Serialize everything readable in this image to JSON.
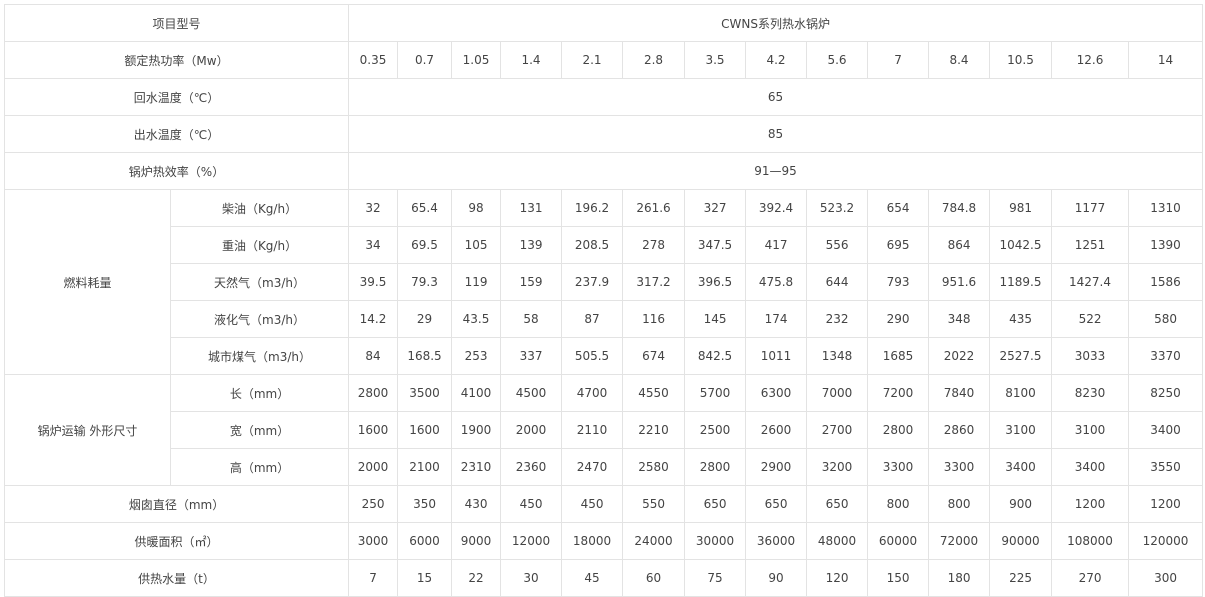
{
  "table": {
    "header": {
      "label": "项目型号",
      "title": "CWNS系列热水锅炉"
    },
    "rows": [
      {
        "label": "额定热功率（Mw）",
        "values": [
          0.35,
          0.7,
          1.05,
          1.4,
          2.1,
          2.8,
          3.5,
          4.2,
          5.6,
          7,
          8.4,
          10.5,
          12.6,
          14
        ]
      },
      {
        "label": "回水温度（℃）",
        "value": 65
      },
      {
        "label": "出水温度（℃）",
        "value": 85
      },
      {
        "label": "锅炉热效率（%）",
        "value": "91—95"
      },
      {
        "group": "燃料耗量",
        "items": [
          {
            "label": "柴油（Kg/h）",
            "values": [
              32,
              65.4,
              98,
              131,
              196.2,
              261.6,
              327,
              392.4,
              523.2,
              654,
              784.8,
              981,
              1177,
              1310
            ]
          },
          {
            "label": "重油（Kg/h）",
            "values": [
              34,
              69.5,
              105,
              139,
              208.5,
              278,
              347.5,
              417,
              556,
              695,
              864,
              1042.5,
              1251,
              1390
            ]
          },
          {
            "label": "天然气（m3/h）",
            "values": [
              39.5,
              79.3,
              119,
              159,
              237.9,
              317.2,
              396.5,
              475.8,
              644,
              793,
              951.6,
              1189.5,
              1427.4,
              1586
            ]
          },
          {
            "label": "液化气（m3/h）",
            "values": [
              14.2,
              29,
              43.5,
              58,
              87,
              116,
              145,
              174,
              232,
              290,
              348,
              435,
              522,
              580
            ]
          },
          {
            "label": "城市煤气（m3/h）",
            "values": [
              84,
              168.5,
              253,
              337,
              505.5,
              674,
              842.5,
              1011,
              1348,
              1685,
              2022,
              2527.5,
              3033,
              3370
            ]
          }
        ]
      },
      {
        "group": "锅炉运输 外形尺寸",
        "items": [
          {
            "label": "长（mm）",
            "values": [
              2800,
              3500,
              4100,
              4500,
              4700,
              4550,
              5700,
              6300,
              7000,
              7200,
              7840,
              8100,
              8230,
              8250
            ]
          },
          {
            "label": "宽（mm）",
            "values": [
              1600,
              1600,
              1900,
              2000,
              2110,
              2210,
              2500,
              2600,
              2700,
              2800,
              2860,
              3100,
              3100,
              3400
            ]
          },
          {
            "label": "高（mm）",
            "values": [
              2000,
              2100,
              2310,
              2360,
              2470,
              2580,
              2800,
              2900,
              3200,
              3300,
              3300,
              3400,
              3400,
              3550
            ]
          }
        ]
      },
      {
        "label": "烟囱直径（mm）",
        "values": [
          250,
          350,
          430,
          450,
          450,
          550,
          650,
          650,
          650,
          800,
          800,
          900,
          1200,
          1200
        ]
      },
      {
        "label": "供暖面积（㎡）",
        "values": [
          3000,
          6000,
          9000,
          12000,
          18000,
          24000,
          30000,
          36000,
          48000,
          60000,
          72000,
          90000,
          108000,
          120000
        ]
      },
      {
        "label": "供热水量（t）",
        "values": [
          7,
          15,
          22,
          30,
          45,
          60,
          75,
          90,
          120,
          150,
          180,
          225,
          270,
          300
        ]
      }
    ]
  }
}
